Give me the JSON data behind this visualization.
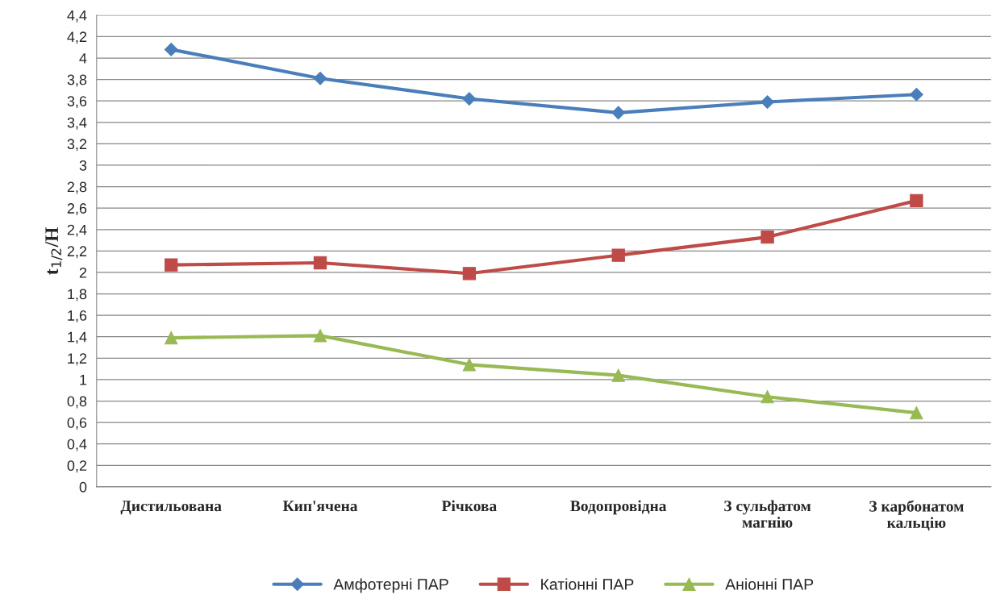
{
  "chart_data": {
    "type": "line",
    "ylabel": "t$_{1/2}$/Н",
    "categories": [
      "Дистильована",
      "Кип'ячена",
      "Річкова",
      "Водопровідна",
      "З сульфатом\nмагнію",
      "З карбонатом\nкальцію"
    ],
    "series": [
      {
        "name": "Амфотерні ПАР",
        "color": "#4a7ebb",
        "marker": "diamond",
        "values": [
          4.08,
          3.81,
          3.62,
          3.49,
          3.59,
          3.66
        ]
      },
      {
        "name": "Катіонні ПАР",
        "color": "#be4b48",
        "marker": "square",
        "values": [
          2.07,
          2.09,
          1.99,
          2.16,
          2.33,
          2.67
        ]
      },
      {
        "name": "Аніонні ПАР",
        "color": "#98b954",
        "marker": "triangle",
        "values": [
          1.39,
          1.41,
          1.14,
          1.04,
          0.84,
          0.69
        ]
      }
    ],
    "ylim": [
      0,
      4.4
    ],
    "yticks": [
      0,
      {
        "value": 0.2,
        "label": "0,2"
      },
      {
        "value": 0.4,
        "label": "0,4"
      },
      {
        "value": 0.6,
        "label": "0,6"
      },
      {
        "value": 0.8,
        "label": "0,8"
      },
      1,
      {
        "value": 1.2,
        "label": "1,2"
      },
      {
        "value": 1.4,
        "label": "1,4"
      },
      {
        "value": 1.6,
        "label": "1,6"
      },
      {
        "value": 1.8,
        "label": "1,8"
      },
      2,
      {
        "value": 2.2,
        "label": "2,2"
      },
      {
        "value": 2.4,
        "label": "2,4"
      },
      {
        "value": 2.6,
        "label": "2,6"
      },
      {
        "value": 2.8,
        "label": "2,8"
      },
      3,
      {
        "value": 3.2,
        "label": "3,2"
      },
      {
        "value": 3.4,
        "label": "3,4"
      },
      {
        "value": 3.6,
        "label": "3,6"
      },
      {
        "value": 3.8,
        "label": "3,8"
      },
      4,
      {
        "value": 4.2,
        "label": "4,2"
      },
      {
        "value": 4.4,
        "label": "4,4"
      }
    ],
    "grid": "y",
    "legend": "bottom",
    "line_style": "solid"
  }
}
